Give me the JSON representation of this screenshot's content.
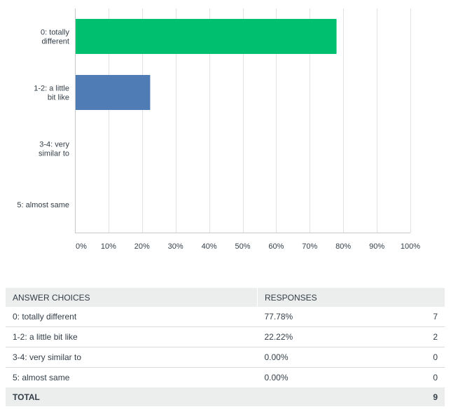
{
  "chart_data": {
    "type": "bar",
    "orientation": "horizontal",
    "categories": [
      "0: totally different",
      "1-2: a little bit like",
      "3-4: very similar to",
      "5: almost same"
    ],
    "category_labels": [
      [
        "0: totally",
        "different"
      ],
      [
        "1-2: a little",
        "bit like"
      ],
      [
        "3-4: very",
        "similar to"
      ],
      [
        "5: almost same"
      ]
    ],
    "values": [
      77.78,
      22.22,
      0,
      0
    ],
    "bar_colors": [
      "#00bf6f",
      "#507cb6",
      "#507cb6",
      "#507cb6"
    ],
    "xlim": [
      0,
      100
    ],
    "xticks": [
      "0%",
      "10%",
      "20%",
      "30%",
      "40%",
      "50%",
      "60%",
      "70%",
      "80%",
      "90%",
      "100%"
    ],
    "grid": true
  },
  "table": {
    "headers": {
      "choice": "ANSWER CHOICES",
      "responses": "RESPONSES"
    },
    "rows": [
      {
        "choice": "0: totally different",
        "percent": "77.78%",
        "count": "7"
      },
      {
        "choice": "1-2: a little bit like",
        "percent": "22.22%",
        "count": "2"
      },
      {
        "choice": "3-4: very similar to",
        "percent": "0.00%",
        "count": "0"
      },
      {
        "choice": "5: almost same",
        "percent": "0.00%",
        "count": "0"
      }
    ],
    "total_label": "TOTAL",
    "total_count": "9"
  }
}
